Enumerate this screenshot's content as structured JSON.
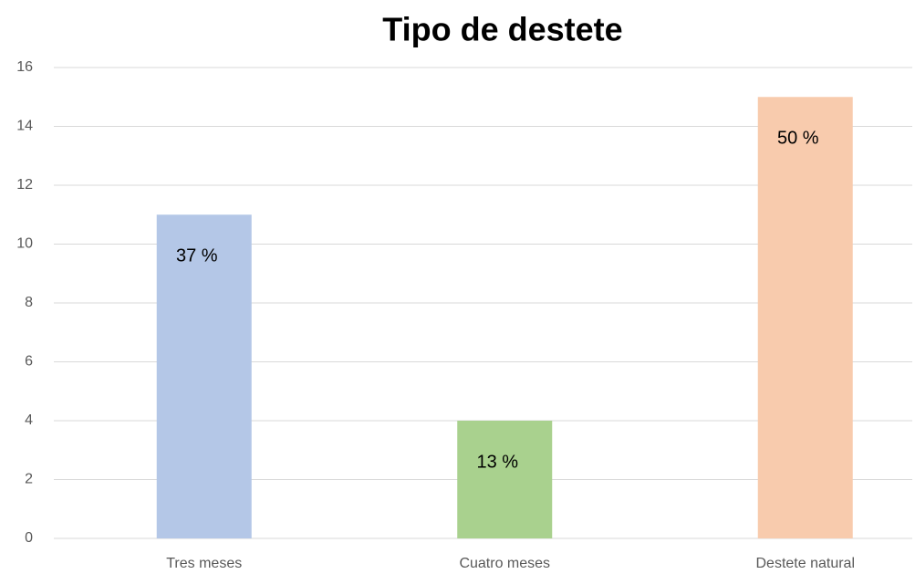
{
  "chart_data": {
    "type": "bar",
    "title": "Tipo de destete",
    "categories": [
      "Tres meses",
      "Cuatro meses",
      "Destete natural"
    ],
    "values": [
      11,
      4,
      15
    ],
    "value_labels": [
      "37 %",
      "13 %",
      "50 %"
    ],
    "colors": [
      "#b4c7e7",
      "#a9d18e",
      "#f8cbad"
    ],
    "ylim": [
      0,
      16
    ],
    "yticks": [
      0,
      2,
      4,
      6,
      8,
      10,
      12,
      14,
      16
    ],
    "grid": true
  }
}
